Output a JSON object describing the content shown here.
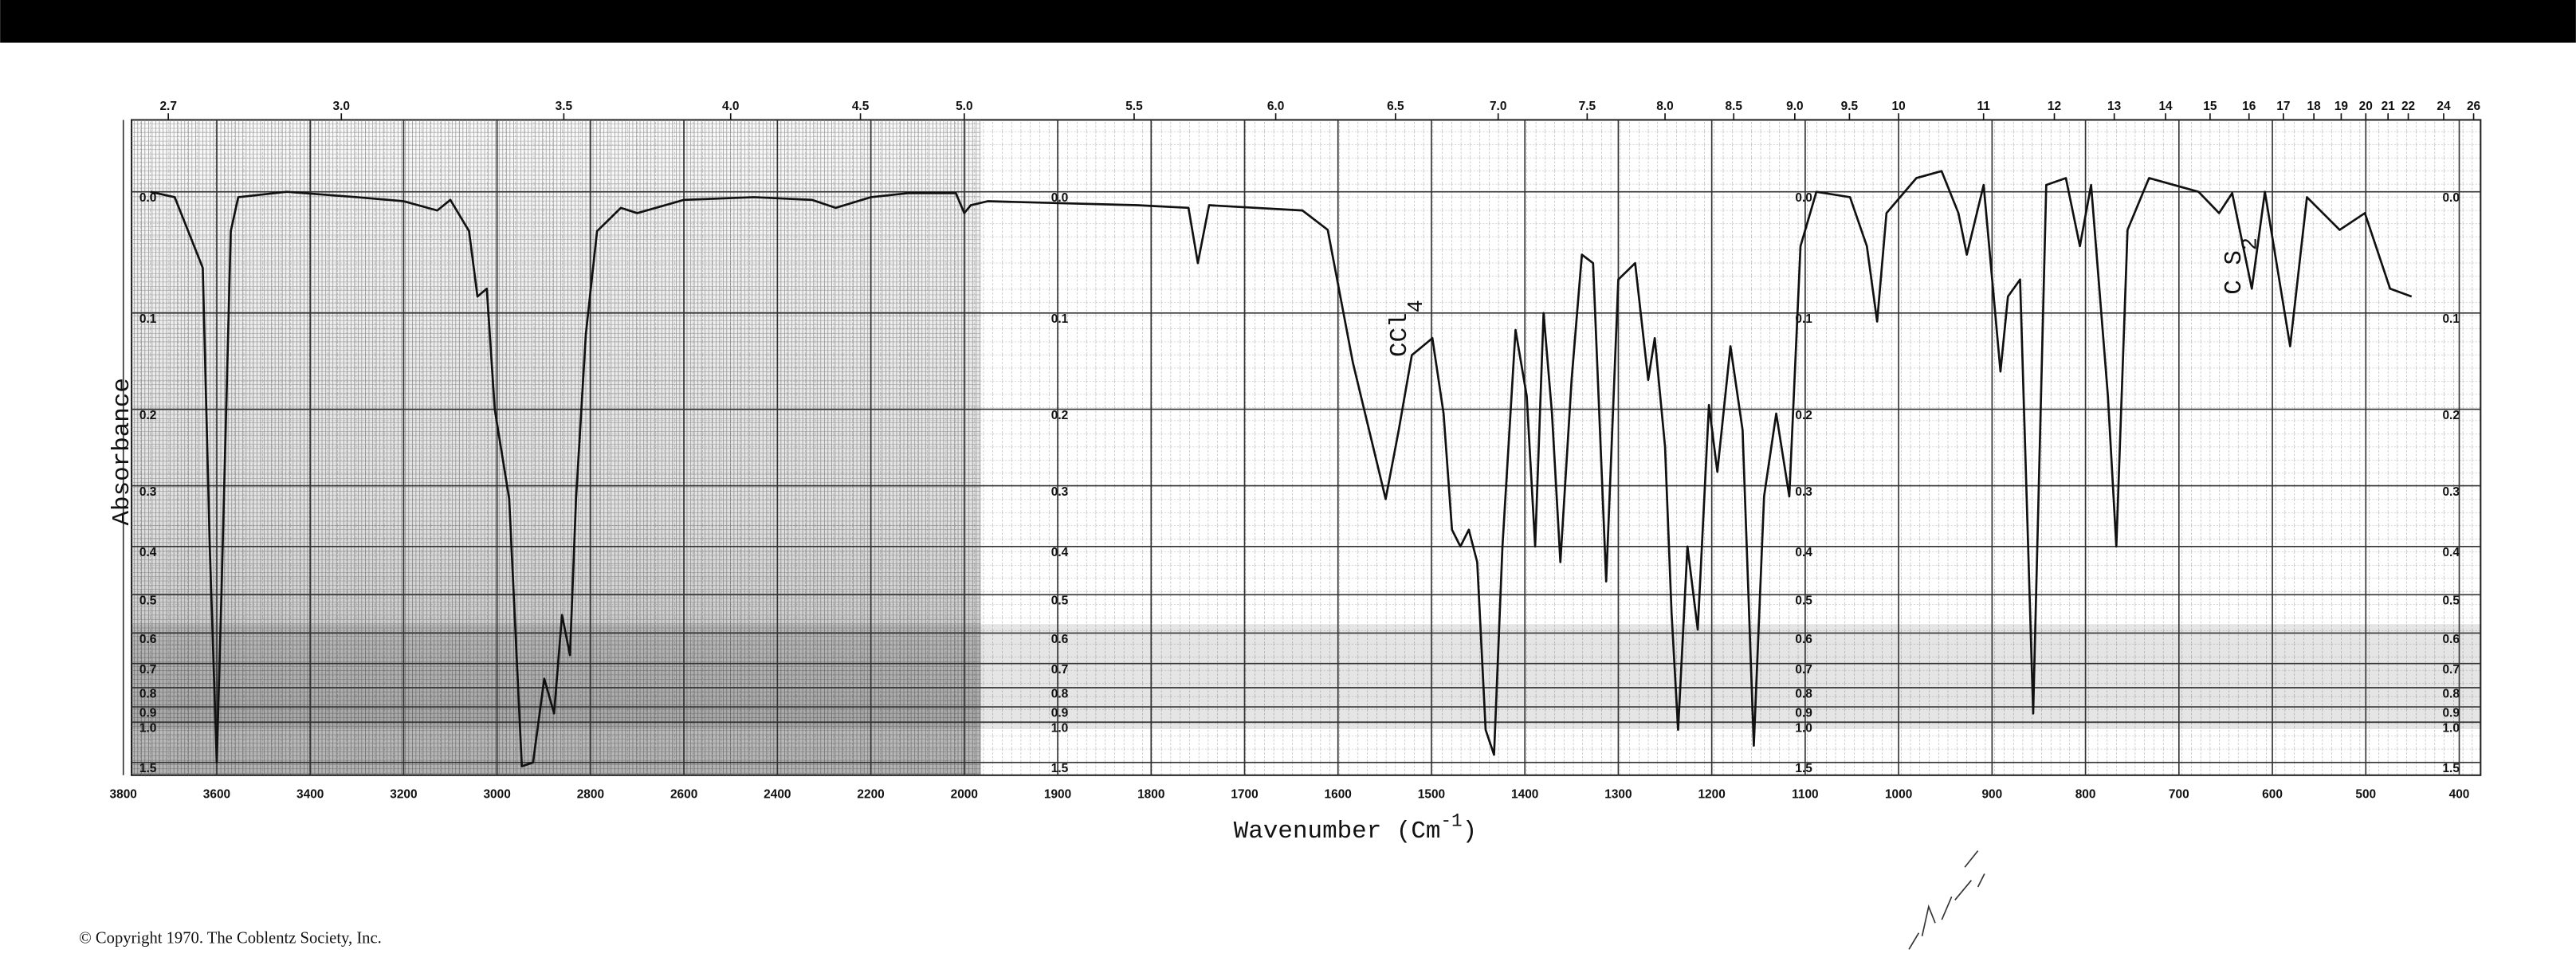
{
  "chart_data": {
    "type": "line",
    "ylabel": "Absorbance",
    "xlabel_parts": [
      "Wavenumber (Cm",
      "-1",
      ")"
    ],
    "annotations": [
      {
        "text": "CCl",
        "sub": "4"
      },
      {
        "text": "C S",
        "sub": "2"
      }
    ],
    "footer": "© Copyright 1970. The Coblentz Society, Inc.",
    "color": "#111111",
    "grid": true,
    "yscale": "transmittance",
    "ylim": [
      -0.05,
      2
    ],
    "yticks": [
      {
        "value": 0,
        "label": "0.0"
      },
      0.1,
      0.2,
      0.3,
      0.4,
      0.5,
      0.6,
      0.7,
      0.8,
      0.9,
      {
        "value": 1,
        "label": "1.0"
      },
      1.5
    ],
    "xlim": [
      3800,
      400
    ],
    "xticks": [
      3800,
      3600,
      3400,
      3200,
      3000,
      2800,
      2600,
      2400,
      2200,
      2000,
      1900,
      1800,
      1700,
      1600,
      1500,
      1400,
      1300,
      1200,
      1100,
      1000,
      900,
      800,
      700,
      600,
      500,
      400
    ],
    "x2ticks": [
      2.7,
      {
        "value": 3,
        "label": "3.0"
      },
      3.5,
      {
        "value": 4,
        "label": "4.0"
      },
      4.5,
      {
        "value": 5,
        "label": "5.0"
      },
      5.5,
      {
        "value": 6,
        "label": "6.0"
      },
      6.5,
      {
        "value": 7,
        "label": "7.0"
      },
      7.5,
      {
        "value": 8,
        "label": "8.0"
      },
      8.5,
      {
        "value": 9,
        "label": "9.0"
      },
      9.5,
      10,
      11,
      12,
      13,
      14,
      15,
      16,
      17,
      18,
      19,
      20,
      21,
      22,
      24,
      26
    ],
    "x": [
      3742,
      3690,
      3630,
      3615,
      3600,
      3590,
      3570,
      3554,
      3450,
      3300,
      3200,
      3128,
      3100,
      3060,
      3042,
      3022,
      3005,
      2974,
      2947,
      2923,
      2899,
      2878,
      2861,
      2844,
      2831,
      2810,
      2786,
      2735,
      2700,
      2600,
      2450,
      2326,
      2275,
      2200,
      2121,
      2018,
      2000,
      1993,
      1975,
      1815,
      1760,
      1750,
      1738,
      1638,
      1611,
      1584,
      1556,
      1549,
      1535,
      1521,
      1499,
      1487,
      1478,
      1469,
      1460,
      1451,
      1442,
      1433,
      1424,
      1410,
      1398,
      1389,
      1380,
      1371,
      1362,
      1350,
      1339,
      1327,
      1313,
      1300,
      1282,
      1268,
      1261,
      1250,
      1243,
      1236,
      1226,
      1215,
      1203,
      1194,
      1180,
      1167,
      1155,
      1144,
      1131,
      1117,
      1105,
      1088,
      1052,
      1034,
      1023,
      1013,
      981,
      954,
      936,
      927,
      909,
      891,
      883,
      870,
      856,
      842,
      821,
      806,
      794,
      776,
      767,
      755,
      732,
      679,
      657,
      643,
      622,
      608,
      581,
      563,
      528,
      501,
      474,
      451
    ],
    "values": [
      0.0,
      0.004,
      0.06,
      0.4,
      1.5,
      0.5,
      0.03,
      0.004,
      0.0,
      0.004,
      0.007,
      0.014,
      0.006,
      0.03,
      0.085,
      0.078,
      0.2,
      0.32,
      1.6,
      1.5,
      0.76,
      0.94,
      0.55,
      0.67,
      0.32,
      0.12,
      0.03,
      0.012,
      0.016,
      0.006,
      0.004,
      0.006,
      0.012,
      0.004,
      0.001,
      0.001,
      0.016,
      0.01,
      0.007,
      0.01,
      0.012,
      0.056,
      0.01,
      0.014,
      0.029,
      0.149,
      0.28,
      0.32,
      0.225,
      0.141,
      0.124,
      0.205,
      0.37,
      0.4,
      0.37,
      0.43,
      1.06,
      1.35,
      0.4,
      0.116,
      0.185,
      0.4,
      0.1,
      0.205,
      0.43,
      0.167,
      0.049,
      0.056,
      0.47,
      0.07,
      0.056,
      0.167,
      0.124,
      0.246,
      0.545,
      1.06,
      0.4,
      0.59,
      0.195,
      0.28,
      0.132,
      0.225,
      1.22,
      0.316,
      0.205,
      0.316,
      0.042,
      0.0,
      0.004,
      0.042,
      0.108,
      0.016,
      -0.01,
      -0.015,
      0.016,
      0.049,
      -0.005,
      0.158,
      0.085,
      0.07,
      0.94,
      -0.005,
      -0.01,
      0.042,
      -0.005,
      0.185,
      0.4,
      0.029,
      -0.01,
      0.0,
      0.016,
      0.001,
      0.078,
      0.0,
      0.132,
      0.004,
      0.029,
      0.016,
      0.078,
      0.085
    ]
  }
}
